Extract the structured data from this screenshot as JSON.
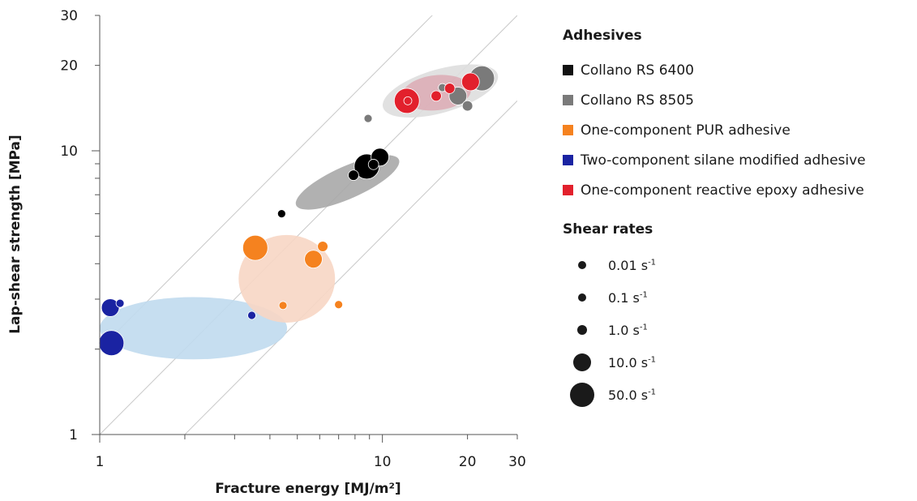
{
  "chart_data": {
    "type": "scatter",
    "xlabel": "Fracture energy [MJ/m²]",
    "ylabel": "Lap-shear strength [MPa]",
    "x_scale": "log",
    "y_scale": "log",
    "xlim": [
      1,
      30
    ],
    "ylim": [
      1,
      30
    ],
    "x_tick_labels": [
      {
        "value": 1,
        "label": "1"
      },
      {
        "value": 10,
        "label": "10"
      },
      {
        "value": 20,
        "label": "20"
      },
      {
        "value": 30,
        "label": "30"
      }
    ],
    "y_tick_labels": [
      {
        "value": 1,
        "label": "1"
      },
      {
        "value": 10,
        "label": "10"
      },
      {
        "value": 20,
        "label": "20"
      },
      {
        "value": 30,
        "label": "30"
      }
    ],
    "reference_lines_y_over_x": [
      0.5,
      1,
      2
    ],
    "regions": [
      {
        "series": "Two-component silane modified adhesive",
        "x": [
          1.0,
          4.6
        ],
        "y": [
          1.84,
          3.05
        ],
        "color": "#c0daee"
      },
      {
        "series": "One-component PUR adhesive",
        "x": [
          3.1,
          6.8
        ],
        "y": [
          2.48,
          5.05
        ],
        "color": "#f7d6c4"
      },
      {
        "series": "Collano RS 6400",
        "x": [
          4.8,
          11.8
        ],
        "y": [
          5.7,
          10.5
        ],
        "color": "#a9a9a9"
      },
      {
        "series": "Collano RS 8505",
        "x": [
          9.7,
          26.5
        ],
        "y": [
          12.0,
          22.0
        ],
        "color": "#dedede"
      },
      {
        "series": "One-component reactive epoxy adhesive",
        "x": [
          11.5,
          21.0
        ],
        "y": [
          13.5,
          19.0
        ],
        "color": "#dba3ad"
      }
    ],
    "series": [
      {
        "name": "Collano RS 6400",
        "color": "#000000",
        "points": [
          {
            "x": 4.4,
            "y": 6.0,
            "rate": 0.01
          },
          {
            "x": 7.9,
            "y": 8.2,
            "rate": 1.0
          },
          {
            "x": 8.8,
            "y": 8.8,
            "rate": 50.0
          },
          {
            "x": 9.8,
            "y": 9.5,
            "rate": 10.0
          },
          {
            "x": 9.3,
            "y": 8.95,
            "rate": 1.0
          }
        ]
      },
      {
        "name": "Collano RS 8505",
        "color": "#7a7a7a",
        "points": [
          {
            "x": 8.9,
            "y": 13.0,
            "rate": 0.01
          },
          {
            "x": 16.3,
            "y": 16.7,
            "rate": 0.1
          },
          {
            "x": 18.5,
            "y": 15.6,
            "rate": 10.0
          },
          {
            "x": 20.0,
            "y": 14.4,
            "rate": 1.0
          },
          {
            "x": 22.5,
            "y": 18.0,
            "rate": 50.0
          }
        ]
      },
      {
        "name": "One-component PUR adhesive",
        "color": "#f5821f",
        "points": [
          {
            "x": 3.55,
            "y": 4.55,
            "rate": 50.0
          },
          {
            "x": 6.15,
            "y": 4.6,
            "rate": 1.0
          },
          {
            "x": 5.7,
            "y": 4.15,
            "rate": 10.0
          },
          {
            "x": 4.45,
            "y": 2.85,
            "rate": 0.01
          },
          {
            "x": 7.0,
            "y": 2.87,
            "rate": 0.1
          }
        ]
      },
      {
        "name": "Two-component silane modified adhesive",
        "color": "#1a23a2",
        "points": [
          {
            "x": 1.09,
            "y": 2.8,
            "rate": 10.0
          },
          {
            "x": 1.18,
            "y": 2.9,
            "rate": 0.1
          },
          {
            "x": 1.1,
            "y": 2.1,
            "rate": 50.0
          },
          {
            "x": 3.45,
            "y": 2.63,
            "rate": 0.01
          }
        ]
      },
      {
        "name": "One-component reactive epoxy adhesive",
        "color": "#e2202c",
        "points": [
          {
            "x": 12.2,
            "y": 15.0,
            "rate": 50.0
          },
          {
            "x": 12.3,
            "y": 15.0,
            "rate": 0.01
          },
          {
            "x": 15.5,
            "y": 15.6,
            "rate": 1.0
          },
          {
            "x": 17.3,
            "y": 16.6,
            "rate": 1.0
          },
          {
            "x": 20.5,
            "y": 17.5,
            "rate": 10.0
          }
        ]
      }
    ]
  },
  "legend": {
    "adhesives_title": "Adhesives",
    "adhesives": [
      {
        "label": "Collano RS 6400",
        "color": "#111111"
      },
      {
        "label": "Collano RS 8505",
        "color": "#7a7a7a"
      },
      {
        "label": "One-component PUR adhesive",
        "color": "#f5821f"
      },
      {
        "label": "Two-component silane modified adhesive",
        "color": "#1a23a2"
      },
      {
        "label": "One-component reactive epoxy adhesive",
        "color": "#e2202c"
      }
    ],
    "rates_title": "Shear rates",
    "unit": "s",
    "unit_exponent": "-1",
    "rates": [
      {
        "label": "0.01",
        "rate": 0.01
      },
      {
        "label": "0.1",
        "rate": 0.1
      },
      {
        "label": "1.0",
        "rate": 1.0
      },
      {
        "label": "10.0",
        "rate": 10.0
      },
      {
        "label": "50.0",
        "rate": 50.0
      }
    ]
  }
}
